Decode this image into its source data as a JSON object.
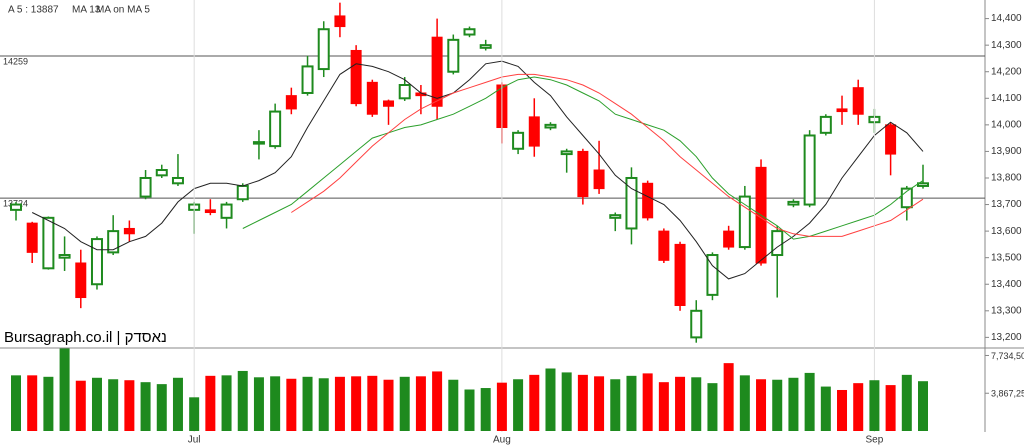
{
  "chart_data": [
    {
      "type": "candlestick",
      "open": [
        13680,
        13630,
        13460,
        13500,
        13480,
        13400,
        13520,
        13610,
        13730,
        13810,
        13780,
        13680,
        13680,
        13650,
        13720,
        13930,
        13920,
        14110,
        14120,
        14210,
        14410,
        14280,
        14160,
        14090,
        14100,
        14120,
        14330,
        14200,
        14340,
        14290,
        14150,
        13910,
        14030,
        13990,
        13890,
        13900,
        13830,
        13650,
        13610,
        13780,
        13600,
        13550,
        13200,
        13360,
        13600,
        13540,
        13840,
        13510,
        13700,
        13700,
        13970,
        14060,
        14140,
        14010,
        14000,
        13690,
        13770
      ],
      "close": [
        13700,
        13520,
        13650,
        13510,
        13350,
        13570,
        13600,
        13590,
        13800,
        13830,
        13800,
        13700,
        13670,
        13700,
        13770,
        13935,
        14050,
        14060,
        14220,
        14360,
        14370,
        14080,
        14040,
        14070,
        14150,
        14110,
        14070,
        14320,
        14360,
        14300,
        13990,
        13970,
        13920,
        14000,
        13900,
        13730,
        13760,
        13660,
        13800,
        13650,
        13490,
        13320,
        13300,
        13510,
        13540,
        13730,
        13480,
        13600,
        13710,
        13960,
        14030,
        14050,
        14040,
        14030,
        13890,
        13760,
        13780
      ],
      "high": [
        13710,
        13635,
        13655,
        13580,
        13530,
        13580,
        13660,
        13640,
        13830,
        13850,
        13890,
        13710,
        13720,
        13710,
        13780,
        13980,
        14080,
        14140,
        14260,
        14390,
        14460,
        14300,
        14170,
        14095,
        14180,
        14150,
        14400,
        14340,
        14370,
        14320,
        14160,
        13980,
        14100,
        14010,
        13910,
        13910,
        13940,
        13670,
        13840,
        13790,
        13610,
        13560,
        13340,
        13520,
        13620,
        13770,
        13870,
        13620,
        13720,
        13980,
        14040,
        14110,
        14170,
        14060,
        14010,
        13770,
        13850
      ],
      "low": [
        13640,
        13480,
        13455,
        13450,
        13310,
        13380,
        13510,
        13560,
        13720,
        13800,
        13770,
        13590,
        13660,
        13610,
        13710,
        13870,
        13910,
        14040,
        14110,
        14180,
        14330,
        14070,
        14030,
        14000,
        14090,
        14040,
        14020,
        14190,
        14330,
        14280,
        13930,
        13890,
        13880,
        13980,
        13820,
        13700,
        13740,
        13600,
        13550,
        13640,
        13480,
        13300,
        13180,
        13340,
        13530,
        13530,
        13470,
        13350,
        13690,
        13690,
        13960,
        14000,
        14000,
        13970,
        13810,
        13640,
        13760
      ],
      "up_color": "#1e8a1e",
      "down_color": "#ff0000",
      "series": [
        {
          "name": "A 5 : 13887",
          "color": "#222222",
          "values": [
            null,
            13670,
            13640,
            13610,
            13560,
            13530,
            13530,
            13560,
            13580,
            13630,
            13710,
            13760,
            13780,
            13780,
            13770,
            13790,
            13820,
            13880,
            13990,
            14090,
            14190,
            14230,
            14220,
            14200,
            14170,
            14120,
            14100,
            14120,
            14170,
            14230,
            14240,
            14220,
            14160,
            14110,
            14030,
            13960,
            13890,
            13810,
            13760,
            13730,
            13700,
            13640,
            13560,
            13470,
            13420,
            13440,
            13490,
            13540,
            13580,
            13630,
            13700,
            13800,
            13880,
            13960,
            14010,
            13970,
            13900
          ]
        },
        {
          "name": "MA 13",
          "color": "#2ca02c",
          "values": [
            null,
            null,
            null,
            null,
            null,
            null,
            null,
            null,
            null,
            null,
            null,
            null,
            null,
            null,
            13610,
            13640,
            13670,
            13700,
            13750,
            13800,
            13850,
            13900,
            13950,
            13970,
            13990,
            14000,
            14020,
            14040,
            14070,
            14100,
            14140,
            14170,
            14180,
            14170,
            14150,
            14120,
            14090,
            14040,
            14020,
            14000,
            13980,
            13940,
            13880,
            13800,
            13740,
            13700,
            13660,
            13620,
            13570,
            13580,
            13600,
            13620,
            13640,
            13660,
            13700,
            13750,
            13790
          ]
        },
        {
          "name": "MA on MA 5",
          "color": "#ff4040",
          "values": [
            null,
            null,
            null,
            null,
            null,
            null,
            null,
            null,
            null,
            null,
            null,
            null,
            null,
            null,
            null,
            null,
            null,
            13670,
            13710,
            13750,
            13800,
            13860,
            13920,
            13970,
            14020,
            14060,
            14090,
            14120,
            14140,
            14160,
            14180,
            14190,
            14190,
            14180,
            14170,
            14150,
            14120,
            14080,
            14040,
            13990,
            13940,
            13880,
            13830,
            13780,
            13730,
            13690,
            13650,
            13610,
            13590,
            13580,
            13580,
            13580,
            13600,
            13620,
            13640,
            13680,
            13720
          ]
        }
      ],
      "ylim": [
        13160,
        14470
      ],
      "yticks": [
        {
          "value": 13200,
          "label": "13,200"
        },
        {
          "value": 13300,
          "label": "13,300"
        },
        {
          "value": 13400,
          "label": "13,400"
        },
        {
          "value": 13500,
          "label": "13,500"
        },
        {
          "value": 13600,
          "label": "13,600"
        },
        {
          "value": 13700,
          "label": "13,700"
        },
        {
          "value": 13800,
          "label": "13,800"
        },
        {
          "value": 13900,
          "label": "13,900"
        },
        {
          "value": 14000,
          "label": "14,000"
        },
        {
          "value": 14100,
          "label": "14,100"
        },
        {
          "value": 14200,
          "label": "14,200"
        },
        {
          "value": 14300,
          "label": "14,300"
        },
        {
          "value": 14400,
          "label": "14,400"
        }
      ],
      "hlines": [
        14259,
        13724
      ],
      "annotation": "Bursagraph.co.il | נאסדק"
    },
    {
      "type": "bar",
      "categories": [
        null,
        null,
        null,
        null,
        null,
        null,
        null,
        null,
        null,
        null,
        null,
        "Jul",
        null,
        null,
        null,
        null,
        null,
        null,
        null,
        null,
        null,
        null,
        null,
        null,
        null,
        null,
        null,
        null,
        null,
        null,
        "Aug",
        null,
        null,
        null,
        null,
        null,
        null,
        null,
        null,
        null,
        null,
        null,
        null,
        null,
        null,
        null,
        null,
        null,
        null,
        null,
        null,
        null,
        null,
        "Sep",
        null,
        null,
        null
      ],
      "values": [
        570000,
        570000,
        555000,
        845000,
        515000,
        545000,
        530000,
        520000,
        500000,
        480000,
        545000,
        345000,
        565000,
        570000,
        615000,
        550000,
        560000,
        535000,
        555000,
        540000,
        555000,
        560000,
        565000,
        525000,
        555000,
        560000,
        610000,
        525000,
        425000,
        440000,
        495000,
        530000,
        575000,
        640000,
        600000,
        575000,
        560000,
        530000,
        565000,
        590000,
        500000,
        555000,
        550000,
        490000,
        695000,
        570000,
        530000,
        525000,
        545000,
        595000,
        455000,
        420000,
        490000,
        520000,
        470000,
        575000,
        510000
      ],
      "ylim": [
        0,
        850000
      ],
      "yticks": [
        {
          "value": 773450,
          "label": "7,734,50"
        },
        {
          "value": 386725,
          "label": "3,867,25"
        }
      ]
    }
  ]
}
